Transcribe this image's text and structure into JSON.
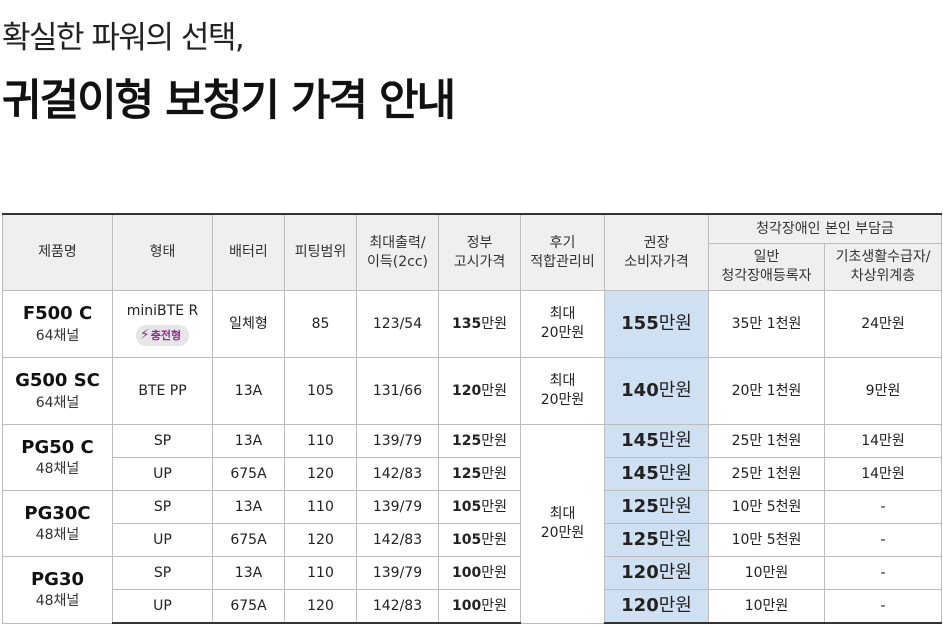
{
  "header": {
    "subtitle": "확실한 파워의 선택,",
    "title": "귀걸이형 보청기 가격 안내"
  },
  "table": {
    "columns": {
      "product": "제품명",
      "type": "형태",
      "battery": "배터리",
      "fitting": "피팅범위",
      "output_line1": "최대출력/",
      "output_line2": "이득(2cc)",
      "gov_line1": "정부",
      "gov_line2": "고시가격",
      "after_line1": "후기",
      "after_line2": "적합관리비",
      "retail_line1": "권장",
      "retail_line2": "소비자가격",
      "burden_group": "청각장애인 본인 부담금",
      "general_line1": "일반",
      "general_line2": "청각장애등록자",
      "basic_line1": "기초생활수급자/",
      "basic_line2": "차상위계층"
    },
    "unit": "만원",
    "rows": [
      {
        "model": "F500 C",
        "channels": "64채널",
        "type": "miniBTE R",
        "badge": "충전형",
        "battery": "일체형",
        "fitting": "85",
        "output": "123/54",
        "gov": "135",
        "after_line1": "최대",
        "after_line2": "20만원",
        "retail": "155",
        "general": "35만 1천원",
        "basic": "24만원"
      },
      {
        "model": "G500 SC",
        "channels": "64채널",
        "type": "BTE PP",
        "battery": "13A",
        "fitting": "105",
        "output": "131/66",
        "gov": "120",
        "after_line1": "최대",
        "after_line2": "20만원",
        "retail": "140",
        "general": "20만 1천원",
        "basic": "9만원"
      },
      {
        "model": "PG50 C",
        "channels": "48채널",
        "type": "SP",
        "battery": "13A",
        "fitting": "110",
        "output": "139/79",
        "gov": "125",
        "after_line1": "최대",
        "after_line2": "20만원",
        "retail": "145",
        "general": "25만 1천원",
        "basic": "14만원"
      },
      {
        "type": "UP",
        "battery": "675A",
        "fitting": "120",
        "output": "142/83",
        "gov": "125",
        "retail": "145",
        "general": "25만 1천원",
        "basic": "14만원"
      },
      {
        "model": "PG30C",
        "channels": "48채널",
        "type": "SP",
        "battery": "13A",
        "fitting": "110",
        "output": "139/79",
        "gov": "105",
        "retail": "125",
        "general": "10만 5천원",
        "basic": "-"
      },
      {
        "type": "UP",
        "battery": "675A",
        "fitting": "120",
        "output": "142/83",
        "gov": "105",
        "retail": "125",
        "general": "10만 5천원",
        "basic": "-"
      },
      {
        "model": "PG30",
        "channels": "48채널",
        "type": "SP",
        "battery": "13A",
        "fitting": "110",
        "output": "139/79",
        "gov": "100",
        "retail": "120",
        "general": "10만원",
        "basic": "-"
      },
      {
        "type": "UP",
        "battery": "675A",
        "fitting": "120",
        "output": "142/83",
        "gov": "100",
        "retail": "120",
        "general": "10만원",
        "basic": "-"
      }
    ]
  },
  "colors": {
    "header_bg": "#efefef",
    "retail_bg": "#cfe0f2",
    "badge_text": "#8a2c8c"
  },
  "icons": [
    "bolt-icon"
  ]
}
